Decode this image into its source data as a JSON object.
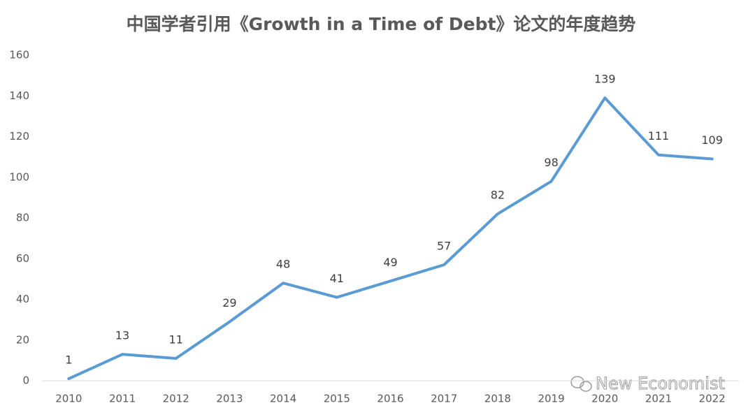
{
  "chart_data": {
    "type": "line",
    "title": "中国学者引用《Growth in a Time of Debt》论文的年度趋势",
    "categories": [
      "2010",
      "2011",
      "2012",
      "2013",
      "2014",
      "2015",
      "2016",
      "2017",
      "2018",
      "2019",
      "2020",
      "2021",
      "2022"
    ],
    "values": [
      1,
      13,
      11,
      29,
      48,
      41,
      49,
      57,
      82,
      98,
      139,
      111,
      109
    ],
    "color": "#5b9bd5",
    "ylim": [
      0,
      160
    ],
    "yticks": [
      0,
      20,
      40,
      60,
      80,
      100,
      120,
      140,
      160
    ],
    "grid": false,
    "watermark": "New Economist"
  }
}
